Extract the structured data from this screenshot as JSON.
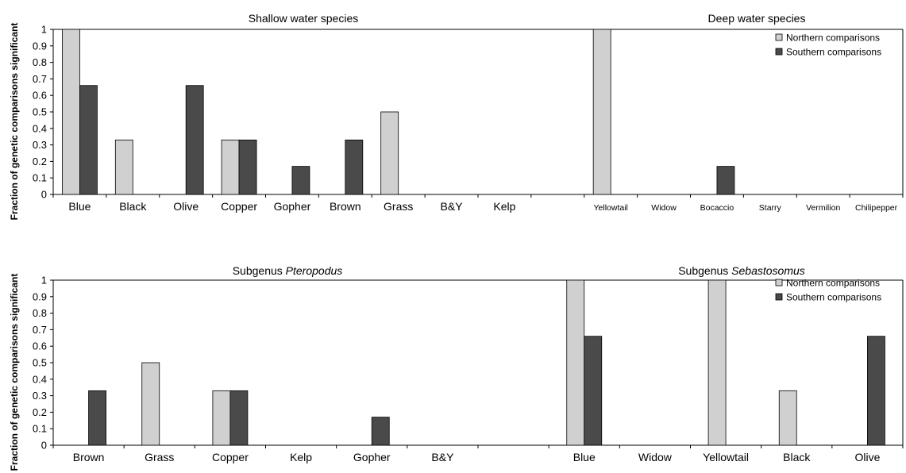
{
  "colors": {
    "northern": "#d0d0d0",
    "southern": "#4a4a4a",
    "outline": "#000000"
  },
  "chart_data": [
    {
      "type": "bar",
      "ylabel": "Fraction of genetic comparisons significant",
      "ylim": [
        0,
        1
      ],
      "yticks": [
        "0",
        "0.1",
        "0.2",
        "0.3",
        "0.4",
        "0.5",
        "0.6",
        "0.7",
        "0.8",
        "0.9",
        "1"
      ],
      "legend": {
        "placement": "top-right",
        "entries": [
          "Northern comparisons",
          "Southern comparisons"
        ]
      },
      "groups": [
        {
          "title_pre": "Shallow water species",
          "title_em": ""
        },
        {
          "title_pre": "Deep water species",
          "title_em": ""
        }
      ],
      "categories": [
        "Blue",
        "Black",
        "Olive",
        "Copper",
        "Gopher",
        "Brown",
        "Grass",
        "B&Y",
        "Kelp",
        "",
        "Yellowtail",
        "Widow",
        "Bocaccio",
        "Starry",
        "Vermilion",
        "Chilipepper"
      ],
      "series": [
        {
          "name": "Northern comparisons",
          "values": [
            1,
            0.33,
            0,
            0.33,
            0,
            0,
            0.5,
            0,
            0,
            null,
            1,
            0,
            0,
            0,
            0,
            0
          ]
        },
        {
          "name": "Southern comparisons",
          "values": [
            0.66,
            0,
            0.66,
            0.33,
            0.17,
            0.33,
            0,
            0,
            0,
            null,
            0,
            0,
            0.17,
            0,
            0,
            0
          ]
        }
      ]
    },
    {
      "type": "bar",
      "ylabel": "Fraction of genetic comparisons significant",
      "ylim": [
        0,
        1
      ],
      "yticks": [
        "0",
        "0.1",
        "0.2",
        "0.3",
        "0.4",
        "0.5",
        "0.6",
        "0.7",
        "0.8",
        "0.9",
        "1"
      ],
      "legend": {
        "placement": "top-right",
        "entries": [
          "Northern comparisons",
          "Southern comparisons"
        ]
      },
      "groups": [
        {
          "title_pre": "Subgenus ",
          "title_em": "Pteropodus"
        },
        {
          "title_pre": "Subgenus ",
          "title_em": "Sebastosomus"
        }
      ],
      "categories": [
        "Brown",
        "Grass",
        "Copper",
        "Kelp",
        "Gopher",
        "B&Y",
        "",
        "Blue",
        "Widow",
        "Yellowtail",
        "Black",
        "Olive"
      ],
      "series": [
        {
          "name": "Northern comparisons",
          "values": [
            0,
            0.5,
            0.33,
            0,
            0,
            0,
            null,
            1,
            0,
            1,
            0.33,
            0
          ]
        },
        {
          "name": "Southern comparisons",
          "values": [
            0.33,
            0,
            0.33,
            0,
            0.17,
            0,
            null,
            0.66,
            0,
            0,
            0,
            0.66
          ]
        }
      ]
    }
  ]
}
